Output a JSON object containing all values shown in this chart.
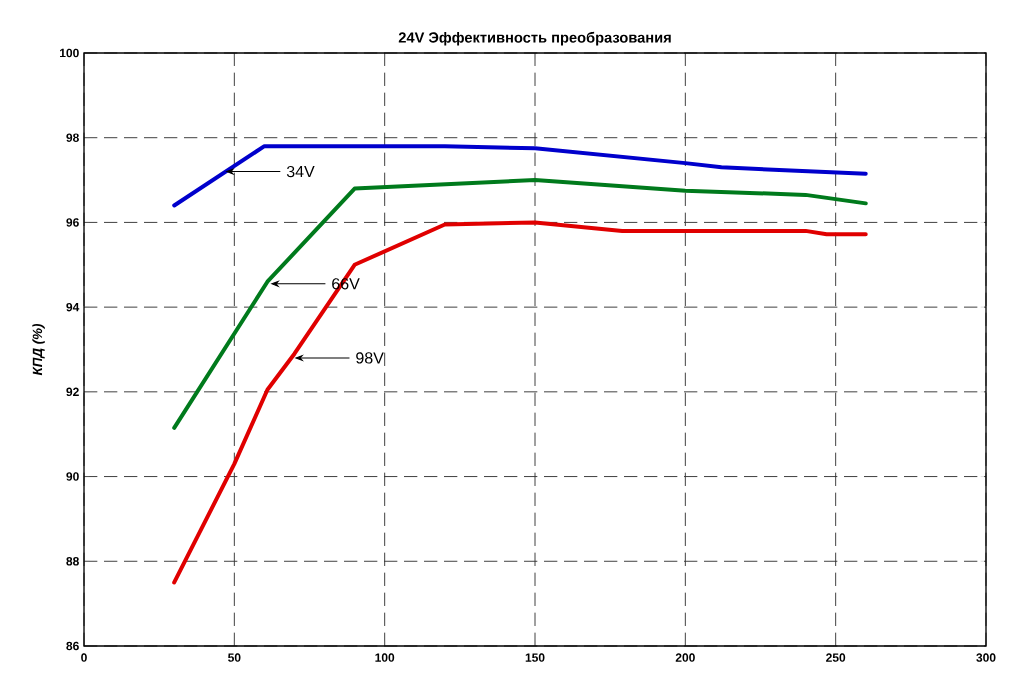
{
  "chart_data": {
    "type": "line",
    "title": "24V Эффективность преобразования",
    "ylabel": "КПД (%)",
    "xlim": [
      0,
      300
    ],
    "ylim": [
      86,
      100
    ],
    "xticks": [
      0,
      50,
      100,
      150,
      200,
      250,
      300
    ],
    "yticks": [
      86,
      88,
      90,
      92,
      94,
      96,
      98,
      100
    ],
    "grid": true,
    "line_style": "solid",
    "marker": "none",
    "series": [
      {
        "color": "#0000cc",
        "x": [
          30,
          60,
          120,
          150,
          200,
          212,
          260
        ],
        "values": [
          96.4,
          97.8,
          97.8,
          97.75,
          97.4,
          97.3,
          97.15
        ]
      },
      {
        "color": "#007a1c",
        "x": [
          30,
          61,
          90,
          150,
          200,
          240,
          260
        ],
        "values": [
          91.15,
          94.6,
          96.8,
          97.0,
          96.75,
          96.65,
          96.45
        ]
      },
      {
        "color": "#e00000",
        "x": [
          30,
          40,
          50,
          61,
          70,
          90,
          120,
          150,
          179,
          240,
          247,
          260
        ],
        "values": [
          87.5,
          88.9,
          90.3,
          92.05,
          92.9,
          95.0,
          95.95,
          96.0,
          95.8,
          95.8,
          95.72,
          95.72
        ]
      }
    ],
    "annotations": [
      {
        "text": "34V",
        "x": 47,
        "y": 97.2
      },
      {
        "text": "66V",
        "x": 62,
        "y": 94.55
      },
      {
        "text": "98V",
        "x": 70,
        "y": 92.8
      }
    ]
  }
}
